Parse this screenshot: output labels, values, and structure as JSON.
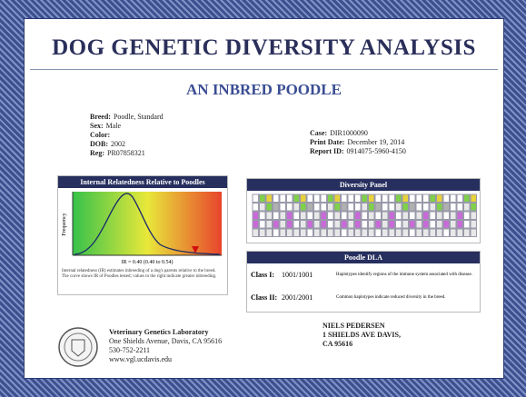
{
  "header": {
    "title": "DOG GENETIC DIVERSITY ANALYSIS",
    "subtitle": "AN INBRED POODLE"
  },
  "dog": [
    {
      "label": "Breed:",
      "value": "Poodle, Standard"
    },
    {
      "label": "Sex:",
      "value": "Male"
    },
    {
      "label": "Color:"
    },
    {
      "label": "DOB:",
      "value": "2002"
    },
    {
      "label": "Reg:",
      "value": "PR07858321"
    }
  ],
  "case": [
    {
      "label": "Case:",
      "value": "DIR1000090"
    },
    {
      "label": "Print Date:",
      "value": "December 19, 2014"
    },
    {
      "label": "Report ID:",
      "value": "0914075-5960-4150"
    }
  ],
  "relatedness": {
    "title": "Internal Relatedness Relative to Poodles",
    "y_label": "Frequency",
    "result": "IR = 0.40 (0.40 to 0.54)",
    "caption": "Internal relatedness (IR) estimates inbreeding of a dog's parents relative to the breed. The curve shows IR of Poodles tested; values to the right indicate greater inbreeding."
  },
  "diversity": {
    "title": "Diversity Panel"
  },
  "dla": {
    "title": "Poodle DLA",
    "rows": [
      {
        "label": "Class I:",
        "value": "1001/1001",
        "note": "Haplotypes identify regions of the immune system associated with disease."
      },
      {
        "label": "Class II:",
        "value": "2001/2001",
        "note": "Common haplotypes indicate reduced diversity in the breed."
      }
    ]
  },
  "lab": {
    "name": "Veterinary Genetics Laboratory",
    "address": "One Shields Avenue, Davis, CA 95616",
    "phone": "530-752-2211",
    "web": "www.vgl.ucdavis.edu"
  },
  "owner": {
    "name": "NIELS PEDERSEN",
    "street": "1 SHIELDS AVE DAVIS,",
    "city": "CA 95616"
  }
}
